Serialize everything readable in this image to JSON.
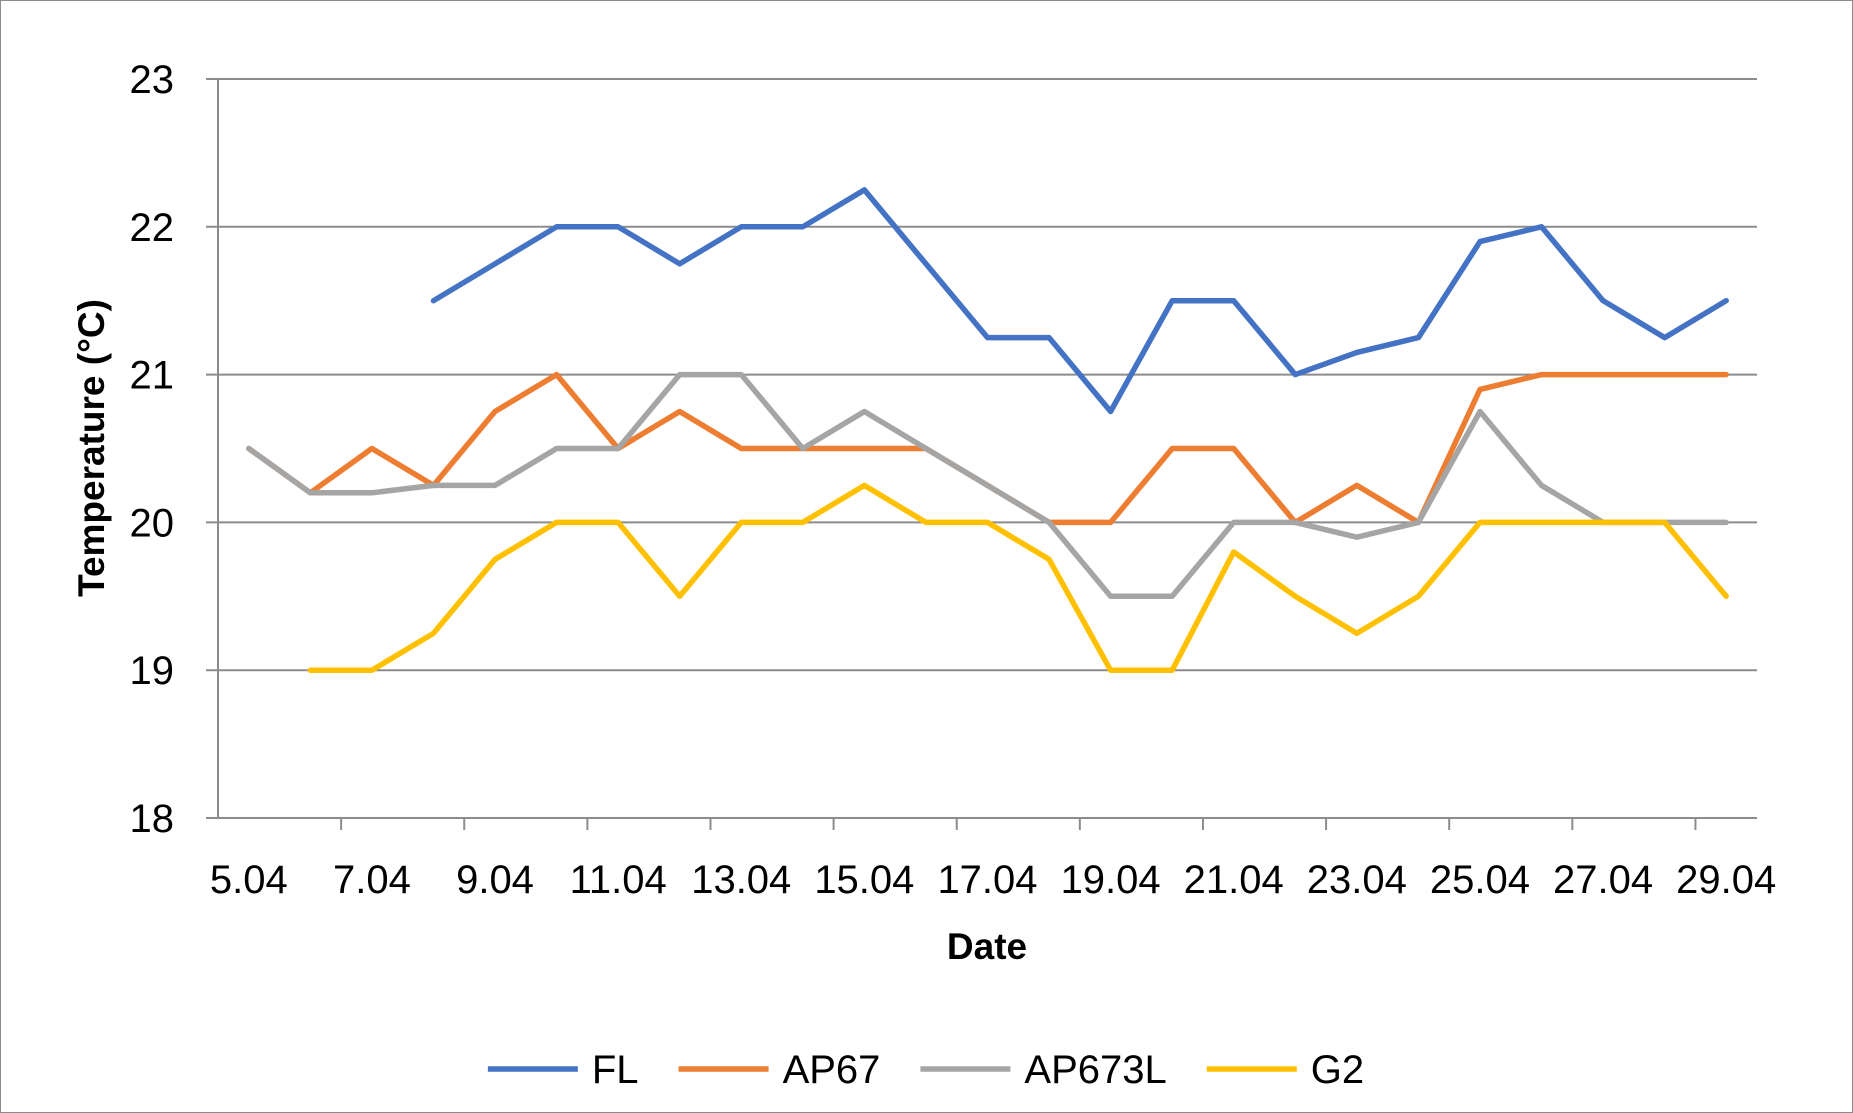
{
  "chart_data": {
    "type": "line",
    "xlabel": "Date",
    "ylabel": "Temperature (°C)",
    "ylim": [
      18,
      23
    ],
    "yticks": [
      18,
      19,
      20,
      21,
      22,
      23
    ],
    "xtick_labels": [
      "5.04",
      "7.04",
      "9.04",
      "11.04",
      "13.04",
      "15.04",
      "17.04",
      "19.04",
      "21.04",
      "23.04",
      "25.04",
      "27.04",
      "29.04"
    ],
    "x": [
      "5.04",
      "6.04",
      "7.04",
      "8.04",
      "9.04",
      "10.04",
      "11.04",
      "12.04",
      "13.04",
      "14.04",
      "15.04",
      "16.04",
      "17.04",
      "18.04",
      "19.04",
      "20.04",
      "21.04",
      "22.04",
      "23.04",
      "24.04",
      "25.04",
      "26.04",
      "27.04",
      "28.04",
      "29.04"
    ],
    "grid": true,
    "legend": "bottom",
    "series": [
      {
        "name": "FL",
        "color": "#4472C4",
        "values": [
          null,
          null,
          null,
          21.5,
          21.75,
          22.0,
          22.0,
          21.75,
          22.0,
          22.0,
          22.25,
          21.75,
          21.25,
          21.25,
          20.75,
          21.5,
          21.5,
          21.0,
          21.15,
          21.25,
          21.9,
          22.0,
          21.5,
          21.25,
          21.5
        ]
      },
      {
        "name": "AP67",
        "color": "#ED7D31",
        "values": [
          20.5,
          20.2,
          20.5,
          20.25,
          20.75,
          21.0,
          20.5,
          20.75,
          20.5,
          20.5,
          20.5,
          20.5,
          20.25,
          20.0,
          20.0,
          20.5,
          20.5,
          20.0,
          20.25,
          20.0,
          20.9,
          21.0,
          21.0,
          21.0,
          21.0
        ]
      },
      {
        "name": "AP673L",
        "color": "#A5A5A5",
        "values": [
          20.5,
          20.2,
          20.2,
          20.25,
          20.25,
          20.5,
          20.5,
          21.0,
          21.0,
          20.5,
          20.75,
          20.5,
          20.25,
          20.0,
          19.5,
          19.5,
          20.0,
          20.0,
          19.9,
          20.0,
          20.75,
          20.25,
          20.0,
          20.0,
          20.0
        ]
      },
      {
        "name": "G2",
        "color": "#FFC000",
        "values": [
          null,
          19.0,
          19.0,
          19.25,
          19.75,
          20.0,
          20.0,
          19.5,
          20.0,
          20.0,
          20.25,
          20.0,
          20.0,
          19.75,
          19.0,
          19.0,
          19.8,
          19.5,
          19.25,
          19.5,
          20.0,
          20.0,
          20.0,
          20.0,
          19.5
        ]
      }
    ]
  }
}
